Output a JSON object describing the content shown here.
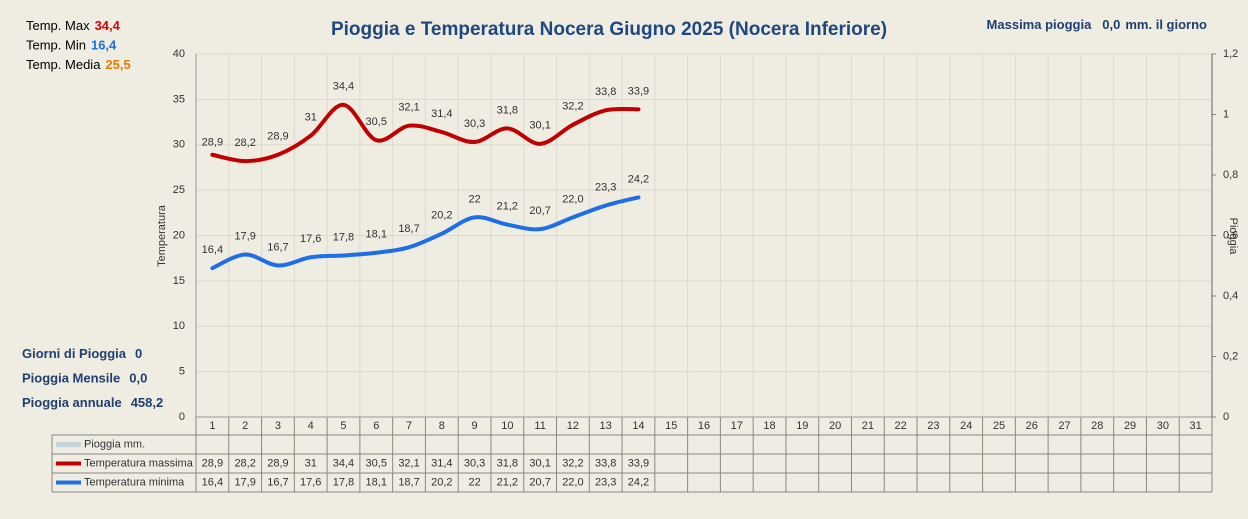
{
  "chart_data": {
    "type": "line",
    "title": "Pioggia e Temperatura Nocera Giugno 2025 (Nocera Inferiore)",
    "y_label": "Temperatura",
    "y2_label": "Pioggia",
    "categories": [
      "1",
      "2",
      "3",
      "4",
      "5",
      "6",
      "7",
      "8",
      "9",
      "10",
      "11",
      "12",
      "13",
      "14",
      "15",
      "16",
      "17",
      "18",
      "19",
      "20",
      "21",
      "22",
      "23",
      "24",
      "25",
      "26",
      "27",
      "28",
      "29",
      "30",
      "31"
    ],
    "series": [
      {
        "name": "Pioggia mm.",
        "color": "#c8d4dc",
        "axis": "y2",
        "values": [
          null,
          null,
          null,
          null,
          null,
          null,
          null,
          null,
          null,
          null,
          null,
          null,
          null,
          null,
          null,
          null,
          null,
          null,
          null,
          null,
          null,
          null,
          null,
          null,
          null,
          null,
          null,
          null,
          null,
          null,
          null
        ]
      },
      {
        "name": "Temperatura massima",
        "color": "#c00000",
        "values": [
          28.9,
          28.2,
          28.9,
          31,
          34.4,
          30.5,
          32.1,
          31.4,
          30.3,
          31.8,
          30.1,
          32.2,
          33.8,
          33.9,
          null,
          null,
          null,
          null,
          null,
          null,
          null,
          null,
          null,
          null,
          null,
          null,
          null,
          null,
          null,
          null,
          null
        ],
        "value_labels": [
          "28,9",
          "28,2",
          "28,9",
          "31",
          "34,4",
          "30,5",
          "32,1",
          "31,4",
          "30,3",
          "31,8",
          "30,1",
          "32,2",
          "33,8",
          "33,9",
          null,
          null,
          null,
          null,
          null,
          null,
          null,
          null,
          null,
          null,
          null,
          null,
          null,
          null,
          null,
          null,
          null
        ]
      },
      {
        "name": "Temperatura minima",
        "color": "#1e6fe6",
        "values": [
          16.4,
          17.9,
          16.7,
          17.6,
          17.8,
          18.1,
          18.7,
          20.2,
          22,
          21.2,
          20.7,
          22.0,
          23.3,
          24.2,
          null,
          null,
          null,
          null,
          null,
          null,
          null,
          null,
          null,
          null,
          null,
          null,
          null,
          null,
          null,
          null,
          null
        ],
        "value_labels": [
          "16,4",
          "17,9",
          "16,7",
          "17,6",
          "17,8",
          "18,1",
          "18,7",
          "20,2",
          "22",
          "21,2",
          "20,7",
          "22,0",
          "23,3",
          "24,2",
          null,
          null,
          null,
          null,
          null,
          null,
          null,
          null,
          null,
          null,
          null,
          null,
          null,
          null,
          null,
          null,
          null
        ]
      }
    ],
    "ylim": [
      0,
      40
    ],
    "yticks": [
      0,
      5,
      10,
      15,
      20,
      25,
      30,
      35,
      40
    ],
    "y2lim": [
      0,
      1.2
    ],
    "y2ticks": [
      0,
      {
        "value": 0.2,
        "label": "0,2"
      },
      {
        "value": 0.4,
        "label": "0,4"
      },
      {
        "value": 0.6,
        "label": "0,6"
      },
      {
        "value": 0.8,
        "label": "0,8"
      },
      1,
      {
        "value": 1.2,
        "label": "1,2"
      }
    ],
    "grid": true,
    "stats_left_top": [
      {
        "label": "Temp. Max",
        "value": "34,4",
        "color": "#e00000"
      },
      {
        "label": "Temp.  Min",
        "value": "16,4",
        "color": "#1e6fe6"
      },
      {
        "label": "Temp. Media",
        "value": "25,5",
        "color": "#e87a00"
      }
    ],
    "stats_left_bottom": [
      {
        "label": "Giorni di Pioggia",
        "value": "0"
      },
      {
        "label": "Pioggia Mensile",
        "value": "0,0"
      },
      {
        "label": "Pioggia annuale",
        "value": "458,2"
      }
    ],
    "stats_top_right": {
      "label": "Massima pioggia",
      "value": "0,0",
      "unit": "mm. il giorno"
    }
  }
}
